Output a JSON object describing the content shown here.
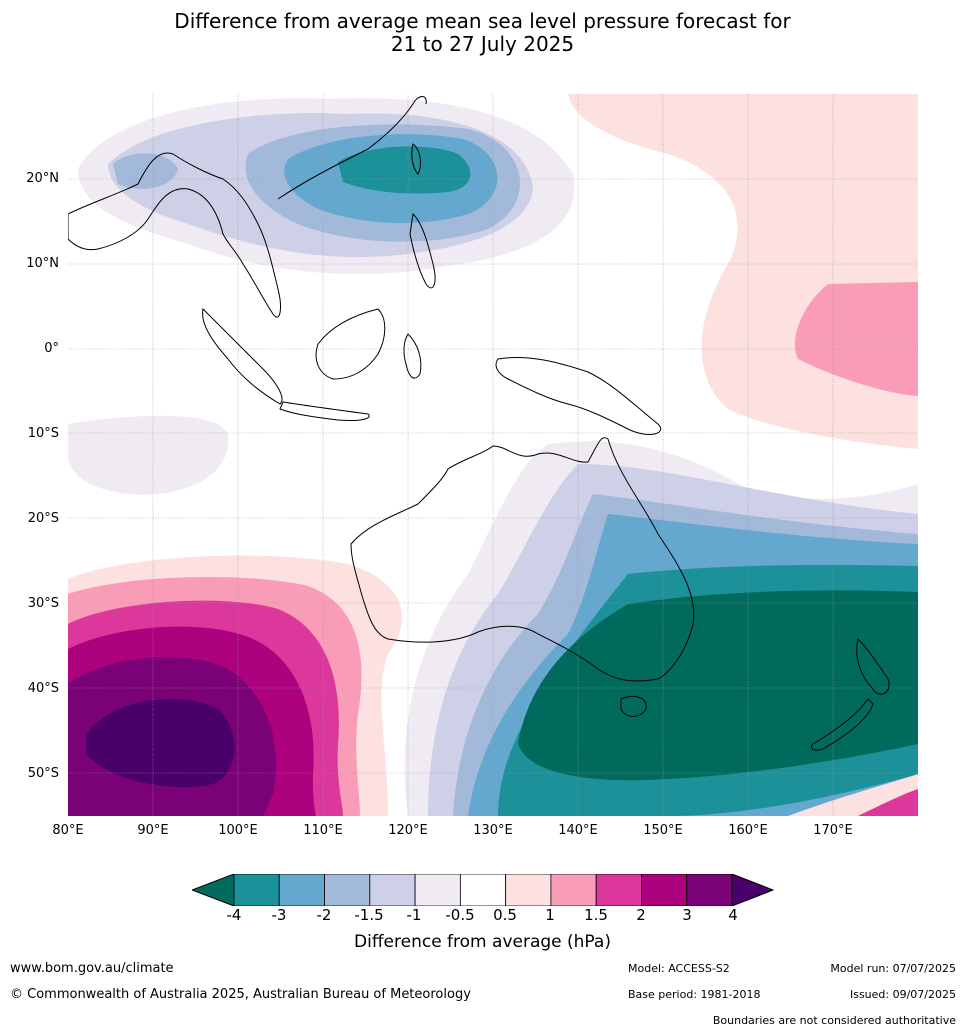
{
  "title_line1": "Difference from average mean sea level pressure forecast for",
  "title_line2": "21 to 27 July 2025",
  "lat_labels": [
    "20°N",
    "10°N",
    "0°",
    "10°S",
    "20°S",
    "30°S",
    "40°S",
    "50°S"
  ],
  "lon_labels": [
    "80°E",
    "90°E",
    "100°E",
    "110°E",
    "120°E",
    "130°E",
    "140°E",
    "150°E",
    "160°E",
    "170°E"
  ],
  "colorbar": {
    "ticks": [
      "-4",
      "-3",
      "-2",
      "-1.5",
      "-1",
      "-0.5",
      "0.5",
      "1",
      "1.5",
      "2",
      "3",
      "4"
    ],
    "colors": [
      "#006b5d",
      "#1c9199",
      "#65a8cf",
      "#a3b9da",
      "#cdd0e6",
      "#f0ebf3",
      "#ffffff",
      "#fde0e0",
      "#f99cb7",
      "#dc379a",
      "#ae017e",
      "#7a0176",
      "#49006a"
    ],
    "label": "Difference from average (hPa)"
  },
  "footer": {
    "url": "www.bom.gov.au/climate",
    "copyright": "© Commonwealth of Australia 2025, Australian Bureau of Meteorology",
    "model": "Model: ACCESS-S2",
    "base_period": "Base period: 1981-2018",
    "model_run": "Model run: 07/07/2025",
    "issued": "Issued: 09/07/2025",
    "boundaries_note": "Boundaries are not considered authoritative"
  }
}
